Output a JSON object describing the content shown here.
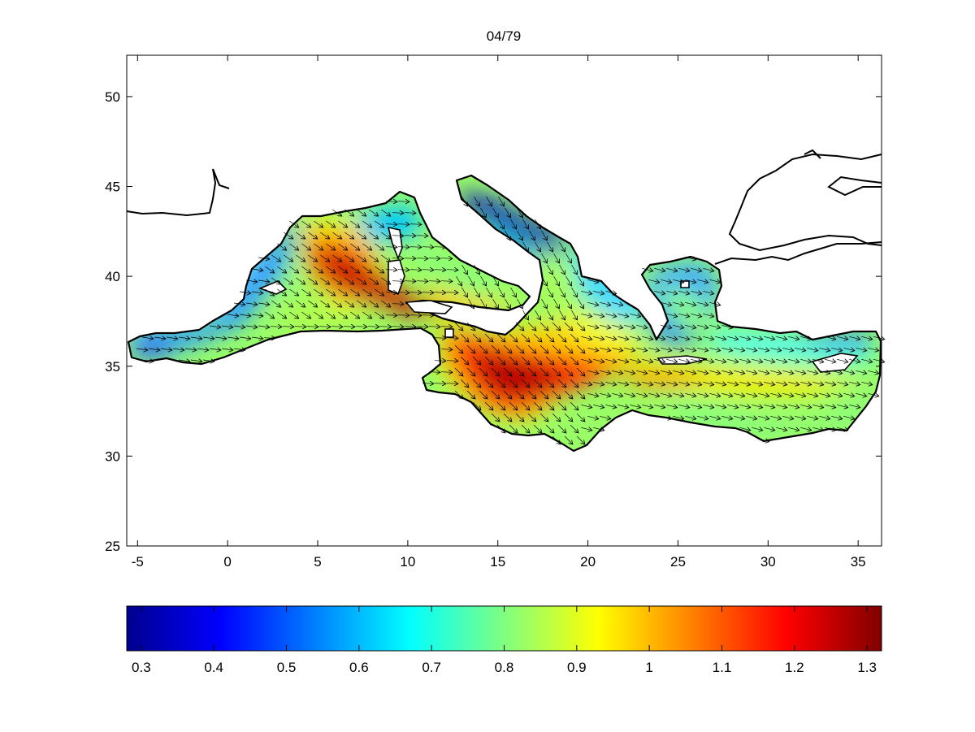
{
  "title": "04/79",
  "map": {
    "x_range": [
      -5.6,
      36.3
    ],
    "y_range": [
      25,
      52.3
    ],
    "x_ticks": [
      -5,
      0,
      5,
      10,
      15,
      20,
      25,
      30,
      35
    ],
    "y_ticks": [
      25,
      30,
      35,
      40,
      45,
      50
    ],
    "field_description": "Mediterranean Sea, colored scalar field (jet colormap) with superimposed vector arrows"
  },
  "colorbar": {
    "colormap": "jet",
    "range": [
      0.28,
      1.32
    ],
    "ticks": [
      "0.3",
      "0.4",
      "0.5",
      "0.6",
      "0.7",
      "0.8",
      "0.9",
      "1",
      "1.1",
      "1.2",
      "1.3"
    ],
    "tick_values": [
      0.3,
      0.4,
      0.5,
      0.6,
      0.7,
      0.8,
      0.9,
      1.0,
      1.1,
      1.2,
      1.3
    ]
  },
  "colors": {
    "axis": "#000000",
    "coast": "#000000",
    "background": "#ffffff"
  }
}
